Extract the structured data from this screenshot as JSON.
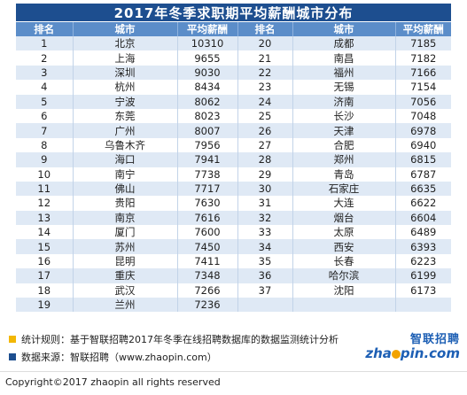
{
  "title": "2017年冬季求职期平均薪酬城市分布",
  "headers": [
    "排名",
    "城市",
    "平均薪酬",
    "排名",
    "城市",
    "平均薪酬"
  ],
  "chart_data": {
    "type": "table",
    "title": "2017年冬季求职期平均薪酬城市分布",
    "columns": [
      "排名",
      "城市",
      "平均薪酬"
    ],
    "rows": [
      [
        1,
        "北京",
        10310
      ],
      [
        2,
        "上海",
        9655
      ],
      [
        3,
        "深圳",
        9030
      ],
      [
        4,
        "杭州",
        8434
      ],
      [
        5,
        "宁波",
        8062
      ],
      [
        6,
        "东莞",
        8023
      ],
      [
        7,
        "广州",
        8007
      ],
      [
        8,
        "乌鲁木齐",
        7956
      ],
      [
        9,
        "海口",
        7941
      ],
      [
        10,
        "南宁",
        7738
      ],
      [
        11,
        "佛山",
        7717
      ],
      [
        12,
        "贵阳",
        7630
      ],
      [
        13,
        "南京",
        7616
      ],
      [
        14,
        "厦门",
        7600
      ],
      [
        15,
        "苏州",
        7450
      ],
      [
        16,
        "昆明",
        7411
      ],
      [
        17,
        "重庆",
        7348
      ],
      [
        18,
        "武汉",
        7266
      ],
      [
        19,
        "兰州",
        7236
      ],
      [
        20,
        "成都",
        7185
      ],
      [
        21,
        "南昌",
        7182
      ],
      [
        22,
        "福州",
        7166
      ],
      [
        23,
        "无锡",
        7154
      ],
      [
        24,
        "济南",
        7056
      ],
      [
        25,
        "长沙",
        7048
      ],
      [
        26,
        "天津",
        6978
      ],
      [
        27,
        "合肥",
        6940
      ],
      [
        28,
        "郑州",
        6815
      ],
      [
        29,
        "青岛",
        6787
      ],
      [
        30,
        "石家庄",
        6635
      ],
      [
        31,
        "大连",
        6622
      ],
      [
        32,
        "烟台",
        6604
      ],
      [
        33,
        "太原",
        6489
      ],
      [
        34,
        "西安",
        6393
      ],
      [
        35,
        "长春",
        6223
      ],
      [
        36,
        "哈尔滨",
        6199
      ],
      [
        37,
        "沈阳",
        6173
      ]
    ]
  },
  "notes": {
    "rule": "统计规则：基于智联招聘2017年冬季在线招聘数据库的数据监测统计分析",
    "source": "数据来源：智联招聘（www.zhaopin.com）"
  },
  "logo": {
    "cn": "智联招聘",
    "en_prefix": "zha",
    "en_suffix": "pin.com"
  },
  "copyright": "Copyright©2017 zhaopin all rights reserved",
  "colors": {
    "title_bg": "#1d4e8f",
    "header_bg": "#5b8dc9",
    "row_alt": "#dfe9f5",
    "accent": "#f2b705"
  }
}
